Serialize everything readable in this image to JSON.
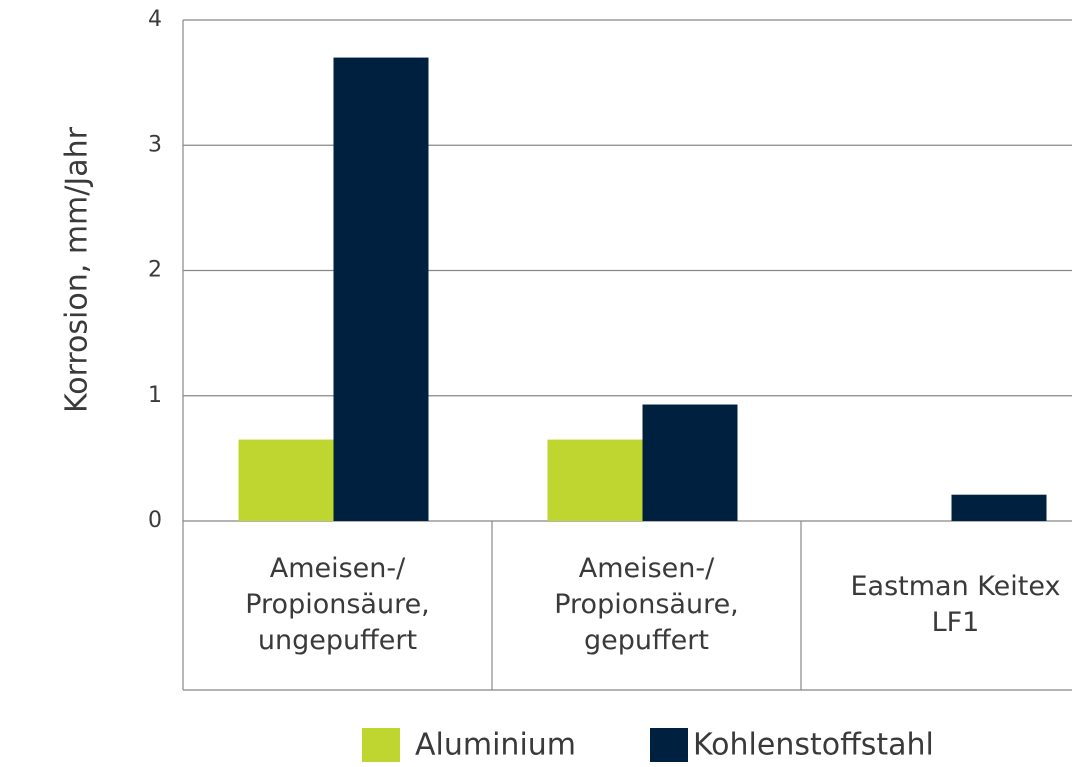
{
  "chart_data": {
    "type": "bar",
    "y_label": "Korrosion, mm/Jahr",
    "categories": [
      [
        "Ameisen-/",
        "Propionsäure,",
        "ungepuffert"
      ],
      [
        "Ameisen-/",
        "Propionsäure,",
        "gepuffert"
      ],
      [
        "Eastman Keitex",
        "LF1"
      ]
    ],
    "series": [
      {
        "name": "Aluminium",
        "color": "#c0d630",
        "values": [
          0.65,
          0.65,
          0
        ]
      },
      {
        "name": "Kohlenstoffstahl",
        "color": "#00203f",
        "values": [
          3.7,
          0.93,
          0.21
        ]
      }
    ],
    "ylim": [
      0,
      4
    ],
    "yticks": [
      0,
      1,
      2,
      3,
      4
    ],
    "grid": true
  }
}
